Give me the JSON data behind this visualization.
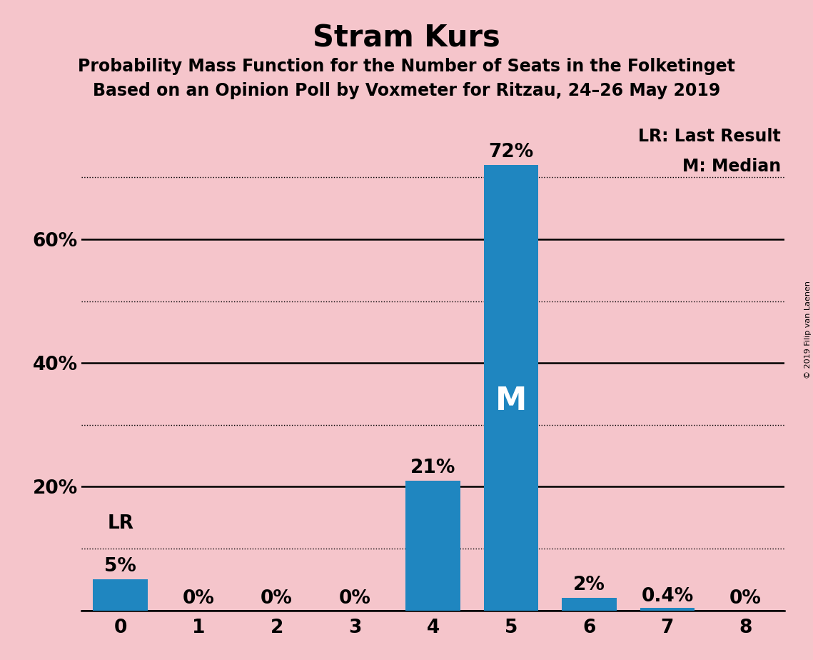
{
  "title": "Stram Kurs",
  "subtitle1": "Probability Mass Function for the Number of Seats in the Folketinget",
  "subtitle2": "Based on an Opinion Poll by Voxmeter for Ritzau, 24–26 May 2019",
  "categories": [
    0,
    1,
    2,
    3,
    4,
    5,
    6,
    7,
    8
  ],
  "values": [
    0.05,
    0.0,
    0.0,
    0.0,
    0.21,
    0.72,
    0.02,
    0.004,
    0.0
  ],
  "bar_labels": [
    "5%",
    "0%",
    "0%",
    "0%",
    "21%",
    "72%",
    "2%",
    "0.4%",
    "0%"
  ],
  "bar_color": "#1f86c0",
  "background_color": "#f5c5cb",
  "median_bar": 5,
  "lr_bar": 0,
  "median_label": "M",
  "lr_label": "LR",
  "legend_lr": "LR: Last Result",
  "legend_m": "M: Median",
  "copyright": "© 2019 Filip van Laenen",
  "ylim": [
    0,
    0.8
  ],
  "solid_yticks": [
    0.0,
    0.2,
    0.4,
    0.6
  ],
  "dotted_yticks": [
    0.1,
    0.3,
    0.5,
    0.7
  ],
  "ytick_positions": [
    0.2,
    0.4,
    0.6
  ],
  "ytick_labels_display": [
    "20%",
    "40%",
    "60%"
  ],
  "title_fontsize": 30,
  "subtitle_fontsize": 17,
  "tick_fontsize": 19,
  "bar_label_fontsize": 19,
  "median_fontsize": 32,
  "lr_fontsize": 19,
  "legend_fontsize": 17,
  "copyright_fontsize": 8
}
